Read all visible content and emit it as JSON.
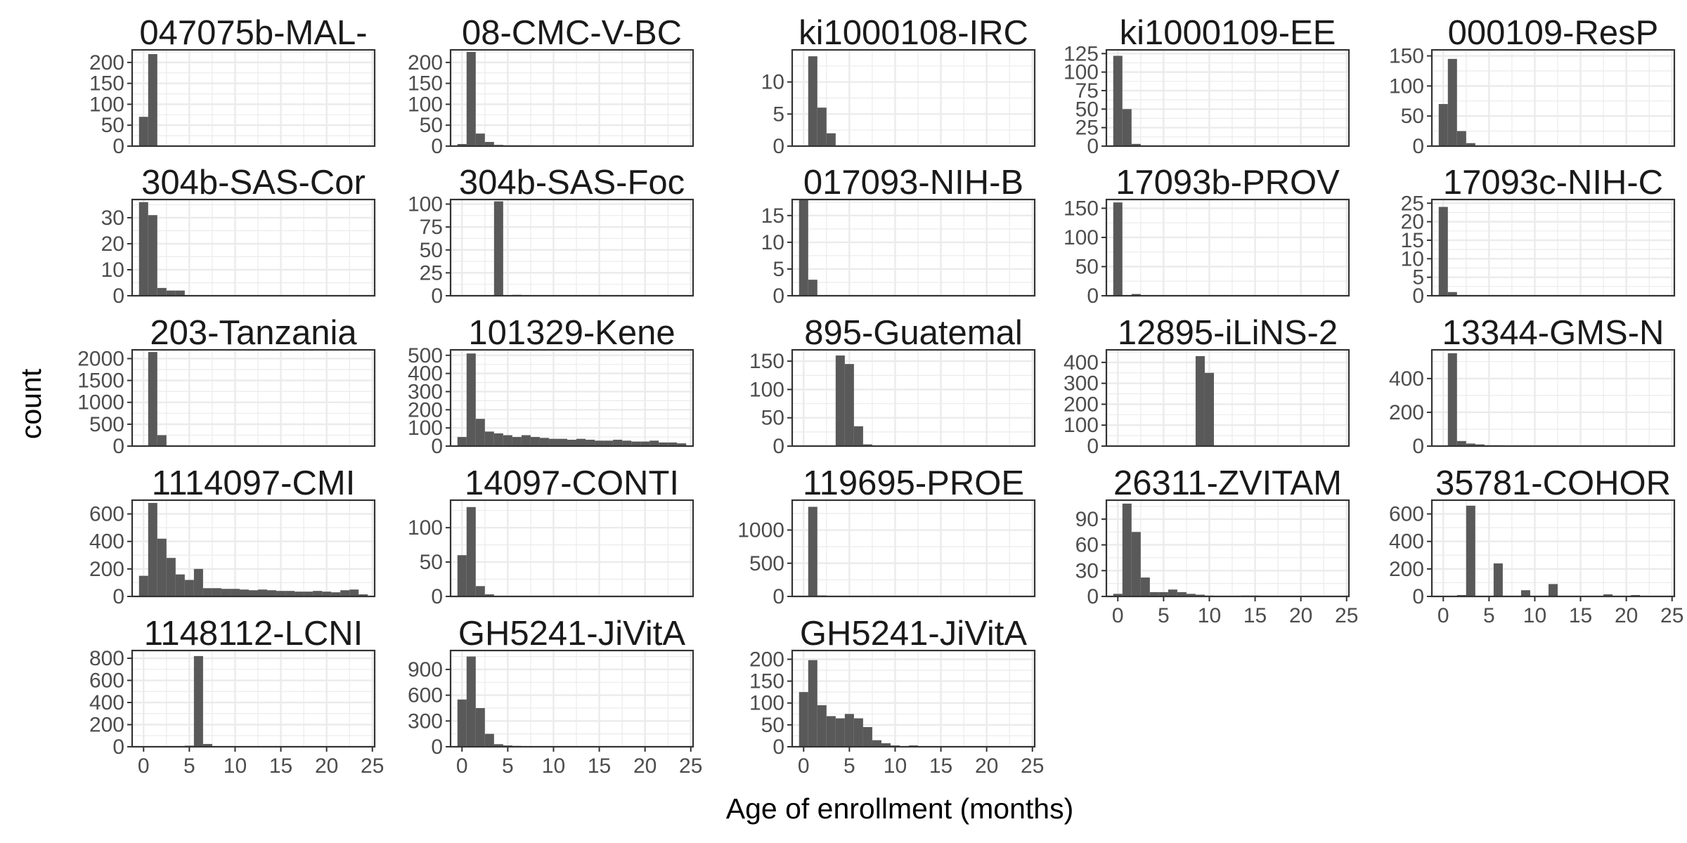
{
  "chart_data": {
    "type": "bar",
    "subtype": "faceted histogram",
    "xlabel": "Age of enrollment (months)",
    "ylabel": "count",
    "xlim": [
      -1.25,
      25.25
    ],
    "x_ticks": [
      0,
      5,
      10,
      15,
      20,
      25
    ],
    "bin_width": 1,
    "grid": true,
    "theme": "bw",
    "colors": {
      "bar": "#595959",
      "grid": "#ebebeb",
      "border": "#333333",
      "tick_text": "#4d4d4d"
    },
    "facets": [
      {
        "label": "047075b-MAL-",
        "ylim": [
          0,
          230
        ],
        "y_ticks": [
          0,
          50,
          100,
          150,
          200
        ],
        "bins": [
          {
            "x": 0,
            "y": 70
          },
          {
            "x": 1,
            "y": 220
          }
        ]
      },
      {
        "label": "08-CMC-V-BC",
        "ylim": [
          0,
          230
        ],
        "y_ticks": [
          0,
          50,
          100,
          150,
          200
        ],
        "bins": [
          {
            "x": 0,
            "y": 5
          },
          {
            "x": 1,
            "y": 225
          },
          {
            "x": 2,
            "y": 30
          },
          {
            "x": 3,
            "y": 10
          },
          {
            "x": 4,
            "y": 3
          },
          {
            "x": 5,
            "y": 2
          },
          {
            "x": 6,
            "y": 2
          },
          {
            "x": 7,
            "y": 2
          }
        ]
      },
      {
        "label": "ki1000108-IRC",
        "ylim": [
          0,
          15
        ],
        "y_ticks": [
          0,
          5,
          10
        ],
        "bins": [
          {
            "x": 1,
            "y": 14
          },
          {
            "x": 2,
            "y": 6
          },
          {
            "x": 3,
            "y": 2
          }
        ]
      },
      {
        "label": "ki1000109-EE",
        "ylim": [
          0,
          130
        ],
        "y_ticks": [
          0,
          25,
          50,
          75,
          100,
          125
        ],
        "bins": [
          {
            "x": 0,
            "y": 122
          },
          {
            "x": 1,
            "y": 50
          },
          {
            "x": 2,
            "y": 3
          }
        ]
      },
      {
        "label": "000109-ResP",
        "ylim": [
          0,
          160
        ],
        "y_ticks": [
          0,
          50,
          100,
          150
        ],
        "bins": [
          {
            "x": 0,
            "y": 70
          },
          {
            "x": 1,
            "y": 145
          },
          {
            "x": 2,
            "y": 25
          },
          {
            "x": 3,
            "y": 5
          }
        ]
      },
      {
        "label": "304b-SAS-Cor",
        "ylim": [
          0,
          37
        ],
        "y_ticks": [
          0,
          10,
          20,
          30
        ],
        "bins": [
          {
            "x": 0,
            "y": 36
          },
          {
            "x": 1,
            "y": 31
          },
          {
            "x": 2,
            "y": 3
          },
          {
            "x": 3,
            "y": 2
          },
          {
            "x": 4,
            "y": 2
          }
        ]
      },
      {
        "label": "304b-SAS-Foc",
        "ylim": [
          0,
          105
        ],
        "y_ticks": [
          0,
          25,
          50,
          75,
          100
        ],
        "bins": [
          {
            "x": 4,
            "y": 103
          },
          {
            "x": 6,
            "y": 1
          }
        ]
      },
      {
        "label": "017093-NIH-B",
        "ylim": [
          0,
          18
        ],
        "y_ticks": [
          0,
          5,
          10,
          15
        ],
        "bins": [
          {
            "x": 0,
            "y": 18
          },
          {
            "x": 1,
            "y": 3
          }
        ]
      },
      {
        "label": "17093b-PROV",
        "ylim": [
          0,
          165
        ],
        "y_ticks": [
          0,
          50,
          100,
          150
        ],
        "bins": [
          {
            "x": 0,
            "y": 160
          },
          {
            "x": 2,
            "y": 3
          }
        ]
      },
      {
        "label": "17093c-NIH-C",
        "ylim": [
          0,
          26
        ],
        "y_ticks": [
          0,
          5,
          10,
          15,
          20,
          25
        ],
        "bins": [
          {
            "x": 0,
            "y": 24
          },
          {
            "x": 1,
            "y": 1
          }
        ]
      },
      {
        "label": "203-Tanzania",
        "ylim": [
          0,
          2200
        ],
        "y_ticks": [
          0,
          500,
          1000,
          1500,
          2000
        ],
        "bins": [
          {
            "x": 1,
            "y": 2150
          },
          {
            "x": 2,
            "y": 250
          }
        ]
      },
      {
        "label": "101329-Kene",
        "ylim": [
          0,
          530
        ],
        "y_ticks": [
          0,
          100,
          200,
          300,
          400,
          500
        ],
        "bins": [
          {
            "x": 0,
            "y": 50
          },
          {
            "x": 1,
            "y": 510
          },
          {
            "x": 2,
            "y": 150
          },
          {
            "x": 3,
            "y": 80
          },
          {
            "x": 4,
            "y": 70
          },
          {
            "x": 5,
            "y": 60
          },
          {
            "x": 6,
            "y": 50
          },
          {
            "x": 7,
            "y": 60
          },
          {
            "x": 8,
            "y": 50
          },
          {
            "x": 9,
            "y": 45
          },
          {
            "x": 10,
            "y": 40
          },
          {
            "x": 11,
            "y": 40
          },
          {
            "x": 12,
            "y": 35
          },
          {
            "x": 13,
            "y": 40
          },
          {
            "x": 14,
            "y": 35
          },
          {
            "x": 15,
            "y": 30
          },
          {
            "x": 16,
            "y": 30
          },
          {
            "x": 17,
            "y": 35
          },
          {
            "x": 18,
            "y": 30
          },
          {
            "x": 19,
            "y": 25
          },
          {
            "x": 20,
            "y": 25
          },
          {
            "x": 21,
            "y": 30
          },
          {
            "x": 22,
            "y": 20
          },
          {
            "x": 23,
            "y": 20
          },
          {
            "x": 24,
            "y": 15
          }
        ]
      },
      {
        "label": "895-Guatemal",
        "ylim": [
          0,
          170
        ],
        "y_ticks": [
          0,
          50,
          100,
          150
        ],
        "bins": [
          {
            "x": 4,
            "y": 160
          },
          {
            "x": 5,
            "y": 145
          },
          {
            "x": 6,
            "y": 35
          },
          {
            "x": 7,
            "y": 3
          }
        ]
      },
      {
        "label": "12895-iLiNS-2",
        "ylim": [
          0,
          460
        ],
        "y_ticks": [
          0,
          100,
          200,
          300,
          400
        ],
        "bins": [
          {
            "x": 9,
            "y": 430
          },
          {
            "x": 10,
            "y": 350
          }
        ]
      },
      {
        "label": "13344-GMS-N",
        "ylim": [
          0,
          570
        ],
        "y_ticks": [
          0,
          200,
          400
        ],
        "bins": [
          {
            "x": 1,
            "y": 550
          },
          {
            "x": 2,
            "y": 30
          },
          {
            "x": 3,
            "y": 15
          },
          {
            "x": 4,
            "y": 10
          },
          {
            "x": 5,
            "y": 5
          },
          {
            "x": 6,
            "y": 5
          }
        ]
      },
      {
        "label": "1114097-CMI",
        "ylim": [
          0,
          700
        ],
        "y_ticks": [
          0,
          200,
          400,
          600
        ],
        "bins": [
          {
            "x": 0,
            "y": 150
          },
          {
            "x": 1,
            "y": 680
          },
          {
            "x": 2,
            "y": 420
          },
          {
            "x": 3,
            "y": 280
          },
          {
            "x": 4,
            "y": 160
          },
          {
            "x": 5,
            "y": 120
          },
          {
            "x": 6,
            "y": 200
          },
          {
            "x": 7,
            "y": 60
          },
          {
            "x": 8,
            "y": 60
          },
          {
            "x": 9,
            "y": 55
          },
          {
            "x": 10,
            "y": 55
          },
          {
            "x": 11,
            "y": 50
          },
          {
            "x": 12,
            "y": 45
          },
          {
            "x": 13,
            "y": 50
          },
          {
            "x": 14,
            "y": 45
          },
          {
            "x": 15,
            "y": 40
          },
          {
            "x": 16,
            "y": 40
          },
          {
            "x": 17,
            "y": 35
          },
          {
            "x": 18,
            "y": 35
          },
          {
            "x": 19,
            "y": 40
          },
          {
            "x": 20,
            "y": 35
          },
          {
            "x": 21,
            "y": 30
          },
          {
            "x": 22,
            "y": 45
          },
          {
            "x": 23,
            "y": 50
          },
          {
            "x": 24,
            "y": 15
          }
        ]
      },
      {
        "label": "14097-CONTI",
        "ylim": [
          0,
          140
        ],
        "y_ticks": [
          0,
          50,
          100
        ],
        "bins": [
          {
            "x": 0,
            "y": 60
          },
          {
            "x": 1,
            "y": 130
          },
          {
            "x": 2,
            "y": 15
          },
          {
            "x": 3,
            "y": 3
          }
        ]
      },
      {
        "label": "119695-PROE",
        "ylim": [
          0,
          1450
        ],
        "y_ticks": [
          0,
          500,
          1000
        ],
        "bins": [
          {
            "x": 1,
            "y": 1350
          },
          {
            "x": 2,
            "y": 15
          }
        ]
      },
      {
        "label": "26311-ZVITAM",
        "ylim": [
          0,
          112
        ],
        "y_ticks": [
          0,
          30,
          60,
          90
        ],
        "bins": [
          {
            "x": 0,
            "y": 3
          },
          {
            "x": 1,
            "y": 108
          },
          {
            "x": 2,
            "y": 75
          },
          {
            "x": 3,
            "y": 22
          },
          {
            "x": 4,
            "y": 5
          },
          {
            "x": 5,
            "y": 5
          },
          {
            "x": 6,
            "y": 8
          },
          {
            "x": 7,
            "y": 5
          },
          {
            "x": 8,
            "y": 3
          },
          {
            "x": 9,
            "y": 2
          },
          {
            "x": 10,
            "y": 1
          },
          {
            "x": 14,
            "y": 1
          },
          {
            "x": 15,
            "y": 1
          }
        ]
      },
      {
        "label": "35781-COHOR",
        "ylim": [
          0,
          700
        ],
        "y_ticks": [
          0,
          200,
          400,
          600
        ],
        "bins": [
          {
            "x": 2,
            "y": 10
          },
          {
            "x": 3,
            "y": 660
          },
          {
            "x": 6,
            "y": 240
          },
          {
            "x": 9,
            "y": 45
          },
          {
            "x": 12,
            "y": 90
          },
          {
            "x": 18,
            "y": 15
          },
          {
            "x": 21,
            "y": 10
          }
        ]
      },
      {
        "label": "1148112-LCNI",
        "ylim": [
          0,
          870
        ],
        "y_ticks": [
          0,
          200,
          400,
          600,
          800
        ],
        "bins": [
          {
            "x": 5,
            "y": 10
          },
          {
            "x": 6,
            "y": 820
          },
          {
            "x": 7,
            "y": 25
          }
        ]
      },
      {
        "label": "GH5241-JiVitA",
        "ylim": [
          0,
          1120
        ],
        "y_ticks": [
          0,
          300,
          600,
          900
        ],
        "bins": [
          {
            "x": 0,
            "y": 550
          },
          {
            "x": 1,
            "y": 1050
          },
          {
            "x": 2,
            "y": 450
          },
          {
            "x": 3,
            "y": 150
          },
          {
            "x": 4,
            "y": 30
          },
          {
            "x": 5,
            "y": 15
          },
          {
            "x": 6,
            "y": 10
          },
          {
            "x": 7,
            "y": 8
          },
          {
            "x": 11,
            "y": 5
          },
          {
            "x": 12,
            "y": 5
          }
        ]
      },
      {
        "label": "GH5241-JiVitA",
        "ylim": [
          0,
          220
        ],
        "y_ticks": [
          0,
          50,
          100,
          150,
          200
        ],
        "bins": [
          {
            "x": 0,
            "y": 125
          },
          {
            "x": 1,
            "y": 198
          },
          {
            "x": 2,
            "y": 95
          },
          {
            "x": 3,
            "y": 70
          },
          {
            "x": 4,
            "y": 65
          },
          {
            "x": 5,
            "y": 75
          },
          {
            "x": 6,
            "y": 65
          },
          {
            "x": 7,
            "y": 45
          },
          {
            "x": 8,
            "y": 15
          },
          {
            "x": 9,
            "y": 8
          },
          {
            "x": 10,
            "y": 3
          },
          {
            "x": 12,
            "y": 3
          }
        ]
      }
    ]
  }
}
